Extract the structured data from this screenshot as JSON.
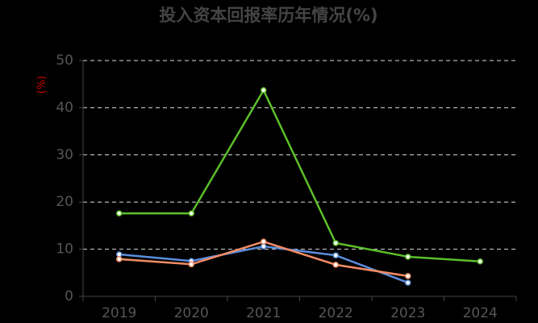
{
  "chart_data": {
    "type": "line",
    "title": "投入资本回报率历年情况(%)",
    "y_label": "(%)",
    "categories": [
      "2019",
      "2020",
      "2021",
      "2022",
      "2023",
      "2024"
    ],
    "series": [
      {
        "color": "#5cbf2a",
        "values": [
          17.6,
          17.6,
          43.7,
          11.3,
          8.4,
          7.4
        ]
      },
      {
        "color": "#5b8ddc",
        "values": [
          8.9,
          7.5,
          10.6,
          8.7,
          2.9,
          null
        ]
      },
      {
        "color": "#f28c64",
        "values": [
          7.9,
          6.8,
          11.6,
          6.7,
          4.3,
          null
        ]
      }
    ],
    "ylim": [
      0,
      50
    ],
    "yticks": [
      0,
      10,
      20,
      30,
      40,
      50
    ],
    "grid": true
  }
}
